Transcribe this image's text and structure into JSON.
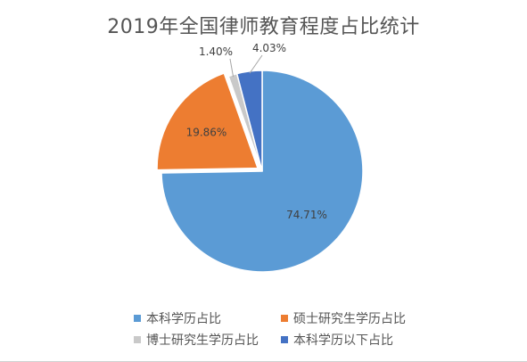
{
  "chart_data": {
    "type": "pie",
    "title": "2019年全国律师教育程度占比统计",
    "categories": [
      "本科学历占比",
      "硕士研究生学历占比",
      "博士研究生学历占比",
      "本科学历以下占比"
    ],
    "values": [
      74.71,
      19.86,
      1.4,
      4.03
    ],
    "labels": [
      "74.71%",
      "19.86%",
      "1.40%",
      "4.03%"
    ],
    "colors": [
      "#5B9BD5",
      "#ED7D31",
      "#C9C9C9",
      "#4472C4"
    ],
    "legend": "bottom"
  }
}
